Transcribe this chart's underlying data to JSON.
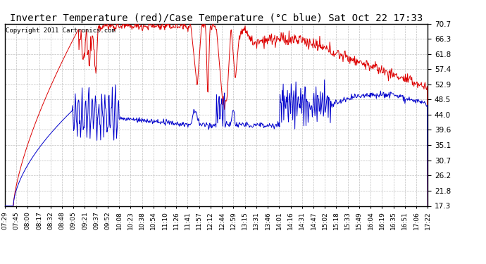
{
  "title": "Inverter Temperature (red)/Case Temperature (°C blue) Sat Oct 22 17:33",
  "copyright": "Copyright 2011 Cartronics.com",
  "yticks": [
    70.7,
    66.3,
    61.8,
    57.4,
    52.9,
    48.5,
    44.0,
    39.6,
    35.1,
    30.7,
    26.2,
    21.8,
    17.3
  ],
  "ylim": [
    17.3,
    70.7
  ],
  "xtick_labels": [
    "07:29",
    "07:45",
    "08:00",
    "08:17",
    "08:32",
    "08:48",
    "09:05",
    "09:21",
    "09:37",
    "09:52",
    "10:08",
    "10:23",
    "10:38",
    "10:54",
    "11:10",
    "11:26",
    "11:41",
    "11:57",
    "12:12",
    "12:44",
    "12:59",
    "13:15",
    "13:31",
    "13:46",
    "14:01",
    "14:16",
    "14:31",
    "14:47",
    "15:02",
    "15:18",
    "15:33",
    "15:49",
    "16:04",
    "16:19",
    "16:35",
    "16:51",
    "17:06",
    "17:22"
  ],
  "background_color": "#ffffff",
  "grid_color": "#c0c0c0",
  "red_color": "#dd0000",
  "blue_color": "#0000cc",
  "title_fontsize": 10,
  "copyright_fontsize": 6.5
}
